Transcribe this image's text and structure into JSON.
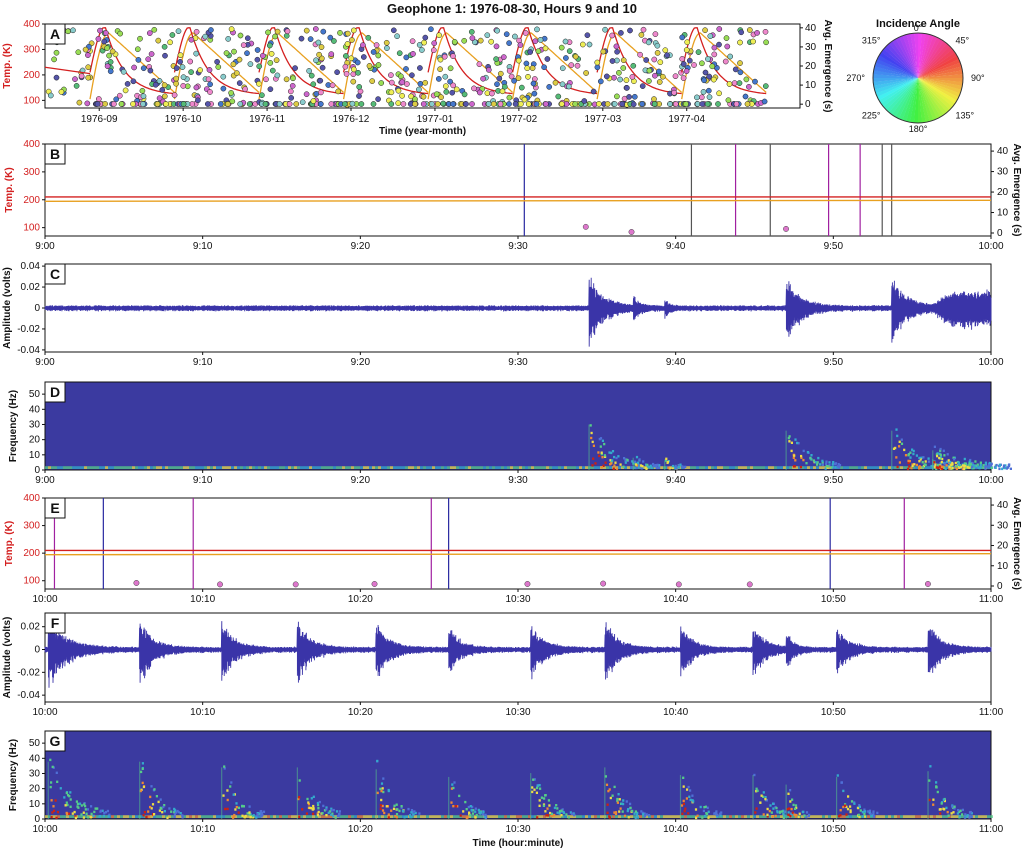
{
  "title": "Geophone 1: 1976-08-30, Hours 9 and 10",
  "colors": {
    "temp": "#d42020",
    "temp_avg": "#e8a020",
    "trace": "#3a34a8",
    "spec_bg": "#3b3aa0",
    "magenta": "#a020a0",
    "blue": "#2828a0"
  },
  "chart_data": [
    {
      "panel": "A",
      "type": "scatter",
      "ylabel_left": "Temp. (K)",
      "ylabel_right": "Avg. Emergence (s)",
      "xlabel": "Time (year-month)",
      "xticks": [
        "1976-09",
        "1976-10",
        "1976-11",
        "1976-12",
        "1977-01",
        "1977-02",
        "1977-03",
        "1977-04"
      ],
      "yticks_left": [
        "100",
        "200",
        "300",
        "400"
      ],
      "yticks_right": [
        "0",
        "10",
        "20",
        "30",
        "40"
      ],
      "ylim_left": [
        70,
        400
      ],
      "ylim_right": [
        -2,
        42
      ]
    },
    {
      "panel": "B",
      "type": "line",
      "ylabel_left": "Temp. (K)",
      "ylabel_right": "Avg. Emergence (s)",
      "xticks": [
        "9:00",
        "9:10",
        "9:20",
        "9:30",
        "9:40",
        "9:50",
        "10:00"
      ],
      "yticks_left": [
        "100",
        "200",
        "300",
        "400"
      ],
      "yticks_right": [
        "0",
        "10",
        "20",
        "30",
        "40"
      ],
      "x_range_min": [
        0,
        60
      ],
      "ylim_left": [
        70,
        400
      ],
      "temp_K": 210,
      "temp_avg_K": 198,
      "event_lines_min": [
        {
          "t": 30.4,
          "c": "blue"
        },
        {
          "t": 41.0,
          "c": "gray"
        },
        {
          "t": 43.8,
          "c": "magenta"
        },
        {
          "t": 46.0,
          "c": "gray"
        },
        {
          "t": 49.7,
          "c": "magenta"
        },
        {
          "t": 51.7,
          "c": "magenta"
        },
        {
          "t": 53.1,
          "c": "gray"
        },
        {
          "t": 53.7,
          "c": "gray"
        }
      ],
      "emergence_points": [
        {
          "t": 34.3,
          "v": 3.0
        },
        {
          "t": 37.2,
          "v": 0.5
        },
        {
          "t": 47.0,
          "v": 2.0
        }
      ]
    },
    {
      "panel": "C",
      "type": "line",
      "ylabel": "Amplitude (volts)",
      "xticks": [
        "9:00",
        "9:10",
        "9:20",
        "9:30",
        "9:40",
        "9:50",
        "10:00"
      ],
      "yticks": [
        "0.04",
        "0.02",
        "0",
        "-0.02",
        "-0.04"
      ],
      "ylim": [
        -0.042,
        0.042
      ],
      "x_range_min": [
        0,
        60
      ],
      "noise_amplitude": 0.0028,
      "events": [
        {
          "t": 34.5,
          "a": 0.037,
          "d": 2.6
        },
        {
          "t": 37.3,
          "a": 0.01,
          "d": 1.3
        },
        {
          "t": 39.3,
          "a": 0.007,
          "d": 1.0
        },
        {
          "t": 47.0,
          "a": 0.032,
          "d": 2.6
        },
        {
          "t": 53.7,
          "a": 0.032,
          "d": 2.8
        },
        {
          "t": 56.3,
          "a": 0.016,
          "d": 4.5
        }
      ]
    },
    {
      "panel": "D",
      "type": "heatmap",
      "ylabel": "Frequency (Hz)",
      "xticks": [
        "9:00",
        "9:10",
        "9:20",
        "9:30",
        "9:40",
        "9:50",
        "10:00"
      ],
      "yticks": [
        "0",
        "10",
        "20",
        "30",
        "40",
        "50"
      ],
      "ylim": [
        0,
        58
      ],
      "x_range_min": [
        0,
        60
      ]
    },
    {
      "panel": "E",
      "type": "line",
      "ylabel_left": "Temp. (K)",
      "ylabel_right": "Avg. Emergence (s)",
      "xticks": [
        "10:00",
        "10:10",
        "10:20",
        "10:30",
        "10:40",
        "10:50",
        "11:00"
      ],
      "yticks_left": [
        "100",
        "200",
        "300",
        "400"
      ],
      "yticks_right": [
        "0",
        "10",
        "20",
        "30",
        "40"
      ],
      "x_range_min": [
        0,
        60
      ],
      "ylim_left": [
        70,
        400
      ],
      "temp_K": 210,
      "temp_avg_K": 198,
      "event_lines_min": [
        {
          "t": 0.6,
          "c": "magenta"
        },
        {
          "t": 3.7,
          "c": "blue"
        },
        {
          "t": 9.4,
          "c": "magenta"
        },
        {
          "t": 24.5,
          "c": "magenta"
        },
        {
          "t": 25.6,
          "c": "blue"
        },
        {
          "t": 49.8,
          "c": "blue"
        },
        {
          "t": 54.5,
          "c": "magenta"
        }
      ],
      "emergence_points": [
        {
          "t": 5.8,
          "v": 1.5
        },
        {
          "t": 11.1,
          "v": 0.8
        },
        {
          "t": 15.9,
          "v": 0.8
        },
        {
          "t": 20.9,
          "v": 1.0
        },
        {
          "t": 30.6,
          "v": 1.0
        },
        {
          "t": 35.4,
          "v": 1.2
        },
        {
          "t": 40.2,
          "v": 0.8
        },
        {
          "t": 44.7,
          "v": 0.8
        },
        {
          "t": 56.0,
          "v": 1.0
        }
      ]
    },
    {
      "panel": "F",
      "type": "line",
      "ylabel": "Amplitude (volts)",
      "xticks": [
        "10:00",
        "10:10",
        "10:20",
        "10:30",
        "10:40",
        "10:50",
        "11:00"
      ],
      "yticks": [
        "0.02",
        "0",
        "-0.02",
        "-0.04"
      ],
      "ylim": [
        -0.046,
        0.032
      ],
      "x_range_min": [
        0,
        60
      ],
      "noise_amplitude": 0.0025,
      "events": [
        {
          "t": 0.2,
          "a": 0.03,
          "d": 3.5
        },
        {
          "t": 6.0,
          "a": 0.03,
          "d": 2.5
        },
        {
          "t": 11.2,
          "a": 0.027,
          "d": 2.5
        },
        {
          "t": 16.0,
          "a": 0.027,
          "d": 2.5
        },
        {
          "t": 21.0,
          "a": 0.026,
          "d": 2.5
        },
        {
          "t": 25.6,
          "a": 0.022,
          "d": 2.2
        },
        {
          "t": 30.8,
          "a": 0.024,
          "d": 2.5
        },
        {
          "t": 35.5,
          "a": 0.027,
          "d": 2.5
        },
        {
          "t": 40.3,
          "a": 0.023,
          "d": 2.3
        },
        {
          "t": 44.9,
          "a": 0.023,
          "d": 2.3
        },
        {
          "t": 47.0,
          "a": 0.018,
          "d": 1.3
        },
        {
          "t": 50.2,
          "a": 0.022,
          "d": 2.3
        },
        {
          "t": 56.0,
          "a": 0.025,
          "d": 2.5
        }
      ]
    },
    {
      "panel": "G",
      "type": "heatmap",
      "ylabel": "Frequency (Hz)",
      "xlabel": "Time (hour:minute)",
      "xticks": [
        "10:00",
        "10:10",
        "10:20",
        "10:30",
        "10:40",
        "10:50",
        "11:00"
      ],
      "yticks": [
        "0",
        "10",
        "20",
        "30",
        "40",
        "50"
      ],
      "ylim": [
        0,
        58
      ],
      "x_range_min": [
        0,
        60
      ]
    }
  ],
  "wheel": {
    "title": "Incidence Angle",
    "labels": [
      "0°",
      "45°",
      "90°",
      "135°",
      "180°",
      "225°",
      "270°",
      "315°"
    ]
  }
}
